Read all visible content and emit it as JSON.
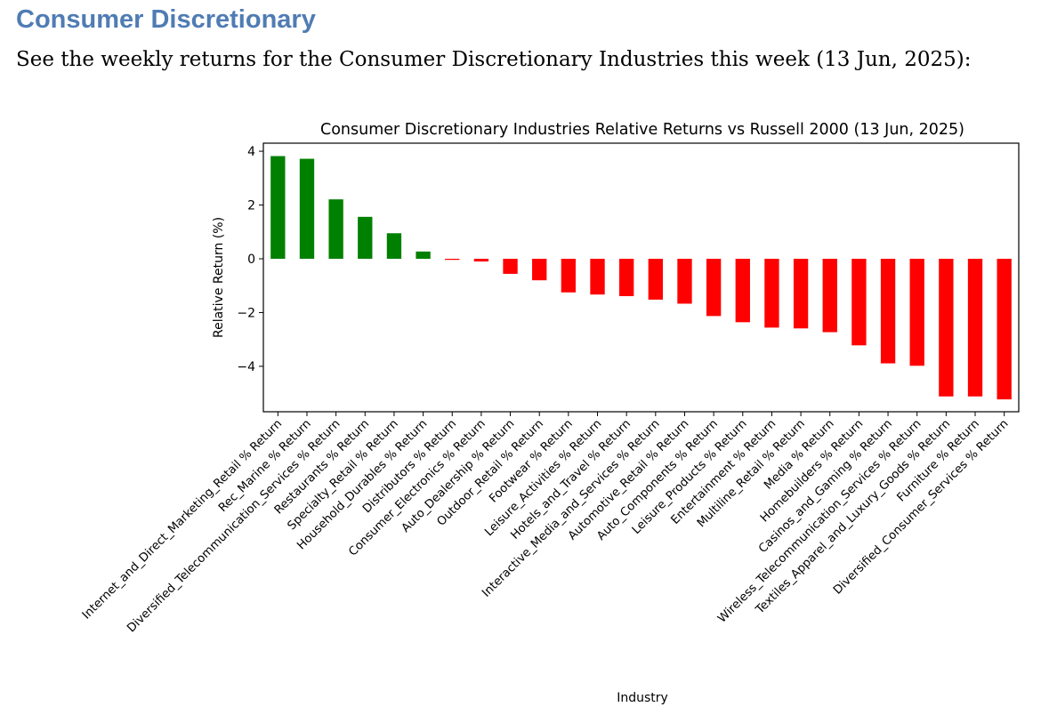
{
  "document": {
    "heading": "Consumer Discretionary",
    "intro": "See the weekly returns for the Consumer Discretionary Industries this week (13 Jun, 2025):"
  },
  "chart_data": {
    "type": "bar",
    "title": "Consumer Discretionary Industries Relative Returns vs Russell 2000 (13 Jun, 2025)",
    "xlabel": "Industry",
    "ylabel": "Relative Return (%)",
    "ylim": [
      -5.69,
      4.3
    ],
    "yticks": [
      4,
      2,
      0,
      -2,
      -4
    ],
    "ytick_labels": [
      "4",
      "2",
      "0",
      "−2",
      "−4"
    ],
    "grid": false,
    "legend": "none",
    "colors": {
      "positive": "#008000",
      "negative": "#ff0000"
    },
    "categories": [
      "Internet_and_Direct_Marketing_Retail % Return",
      "Rec_Marine % Return",
      "Diversified_Telecommunication_Services % Return",
      "Restaurants % Return",
      "Specialty_Retail % Return",
      "Household_Durables % Return",
      "Distributors % Return",
      "Consumer_Electronics % Return",
      "Auto_Dealership % Return",
      "Outdoor_Retail % Return",
      "Footwear % Return",
      "Leisure_Activities % Return",
      "Hotels_and_Travel % Return",
      "Interactive_Media_and_Services % Return",
      "Automotive_Retail % Return",
      "Auto_Components % Return",
      "Leisure_Products % Return",
      "Entertainment % Return",
      "Multiline_Retail % Return",
      "Media % Return",
      "Homebuilders % Return",
      "Casinos_and_Gaming % Return",
      "Wireless_Telecommunication_Services % Return",
      "Textiles_Apparel_and_Luxury_Goods % Return",
      "Furniture % Return",
      "Diversified_Consumer_Services % Return"
    ],
    "values": [
      3.82,
      3.72,
      2.21,
      1.56,
      0.95,
      0.27,
      -0.04,
      -0.1,
      -0.56,
      -0.8,
      -1.25,
      -1.33,
      -1.39,
      -1.52,
      -1.67,
      -2.13,
      -2.36,
      -2.56,
      -2.59,
      -2.73,
      -3.22,
      -3.89,
      -3.98,
      -5.12,
      -5.12,
      -5.23
    ]
  }
}
